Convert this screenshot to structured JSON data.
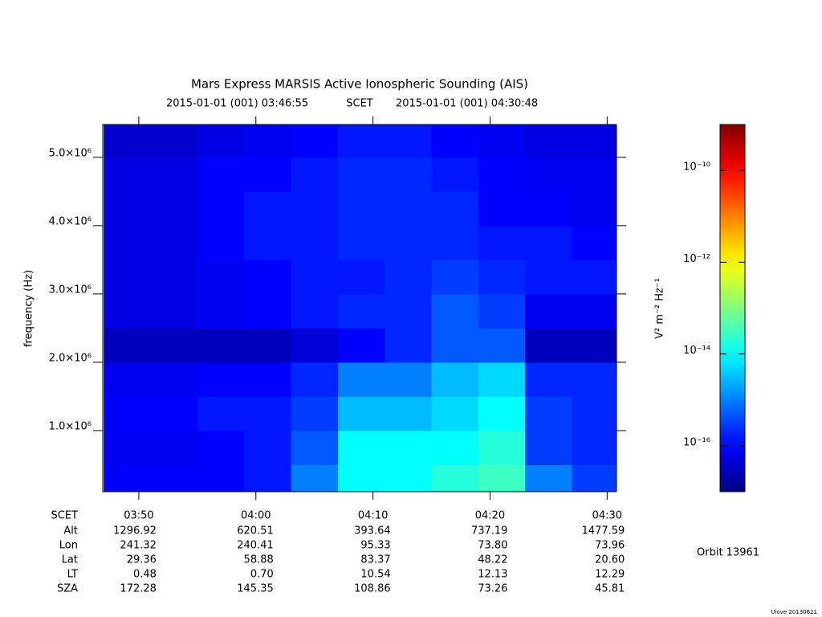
{
  "chart_data": {
    "type": "spectrogram",
    "title": "Mars Express MARSIS Active Ionospheric Sounding (AIS)",
    "subtitle_start": "2015-01-01 (001) 03:46:55",
    "subtitle_mid": "SCET",
    "subtitle_end": "2015-01-01 (001) 04:30:48",
    "ylabel": "frequency (Hz)",
    "xlabel": "SCET",
    "colorbar_label": "V² m⁻² Hz⁻¹",
    "colorbar_log": true,
    "colormap": "jet",
    "xlim": [
      226.92,
      270.8
    ],
    "xticks": [
      {
        "value": 230,
        "label": "03:50"
      },
      {
        "value": 240,
        "label": "04:00"
      },
      {
        "value": 250,
        "label": "04:10"
      },
      {
        "value": 260,
        "label": "04:20"
      },
      {
        "value": 270,
        "label": "04:30"
      }
    ],
    "ylim": [
      106000,
      5480000
    ],
    "yticks": [
      {
        "value": 1000000,
        "label": "1.0×10⁶"
      },
      {
        "value": 2000000,
        "label": "2.0×10⁶"
      },
      {
        "value": 3000000,
        "label": "3.0×10⁶"
      },
      {
        "value": 4000000,
        "label": "4.0×10⁶"
      },
      {
        "value": 5000000,
        "label": "5.0×10⁶"
      }
    ],
    "clim": [
      1e-17,
      1e-09
    ],
    "cticks": [
      {
        "value": 1e-10,
        "label": "10⁻¹⁰"
      },
      {
        "value": 1e-12,
        "label": "10⁻¹²"
      },
      {
        "value": 1e-14,
        "label": "10⁻¹⁴"
      },
      {
        "value": 1e-16,
        "label": "10⁻¹⁶"
      }
    ],
    "x": [
      229,
      233,
      237,
      241,
      245,
      249,
      253,
      257,
      261,
      265,
      269
    ],
    "y": [
      250000,
      750000,
      1250000,
      1750000,
      2250000,
      2750000,
      3250000,
      3750000,
      4250000,
      4750000,
      5250000
    ],
    "z": [
      [
        1e-16,
        1e-16,
        1e-16,
        1.5e-16,
        1e-15,
        1e-14,
        1e-14,
        2e-14,
        3e-14,
        1e-15,
        3e-16
      ],
      [
        8e-17,
        8e-17,
        1e-16,
        1.5e-16,
        5e-16,
        1e-14,
        1e-14,
        1e-14,
        2e-14,
        3e-16,
        2e-16
      ],
      [
        1e-16,
        1e-16,
        1.5e-16,
        1.5e-16,
        3e-16,
        3e-15,
        3e-15,
        5e-15,
        1e-14,
        3e-16,
        2e-16
      ],
      [
        8e-17,
        8e-17,
        1e-16,
        1e-16,
        2e-16,
        1e-15,
        1e-15,
        3e-15,
        5e-15,
        2e-16,
        2e-16
      ],
      [
        3e-17,
        3e-17,
        3e-17,
        3e-17,
        5e-17,
        1e-16,
        2e-16,
        5e-16,
        5e-16,
        3e-17,
        3e-17
      ],
      [
        6e-17,
        6e-17,
        8e-17,
        1e-16,
        1.5e-16,
        2e-16,
        2e-16,
        5e-16,
        3e-16,
        8e-17,
        8e-17
      ],
      [
        6e-17,
        6e-17,
        8e-17,
        1e-16,
        1.5e-16,
        1.5e-16,
        2e-16,
        3e-16,
        2e-16,
        1.5e-16,
        1.5e-16
      ],
      [
        6e-17,
        6e-17,
        1e-16,
        1.5e-16,
        1.5e-16,
        2e-16,
        2e-16,
        2e-16,
        1.5e-16,
        1.5e-16,
        1e-16
      ],
      [
        6e-17,
        6e-17,
        1e-16,
        1.5e-16,
        1.5e-16,
        2e-16,
        2e-16,
        2e-16,
        1e-16,
        1e-16,
        8e-17
      ],
      [
        6e-17,
        6e-17,
        1e-16,
        1e-16,
        1.5e-16,
        2e-16,
        2e-16,
        1.5e-16,
        1e-16,
        8e-17,
        8e-17
      ],
      [
        4e-17,
        4e-17,
        6e-17,
        8e-17,
        1e-16,
        1.5e-16,
        1.5e-16,
        1e-16,
        8e-17,
        6e-17,
        6e-17
      ]
    ],
    "ephemeris": [
      {
        "label": "Alt",
        "values": [
          "1296.92",
          "620.51",
          "393.64",
          "737.19",
          "1477.59"
        ]
      },
      {
        "label": "Lon",
        "values": [
          "241.32",
          "240.41",
          "95.33",
          "73.80",
          "73.96"
        ]
      },
      {
        "label": "Lat",
        "values": [
          "29.36",
          "58.88",
          "83.37",
          "48.22",
          "20.60"
        ]
      },
      {
        "label": "LT",
        "values": [
          "0.48",
          "0.70",
          "10.54",
          "12.13",
          "12.29"
        ]
      },
      {
        "label": "SZA",
        "values": [
          "172.28",
          "145.35",
          "108.86",
          "73.26",
          "45.81"
        ]
      }
    ],
    "orbit": "Orbit 13961",
    "footer": "Ulove 20130621"
  }
}
